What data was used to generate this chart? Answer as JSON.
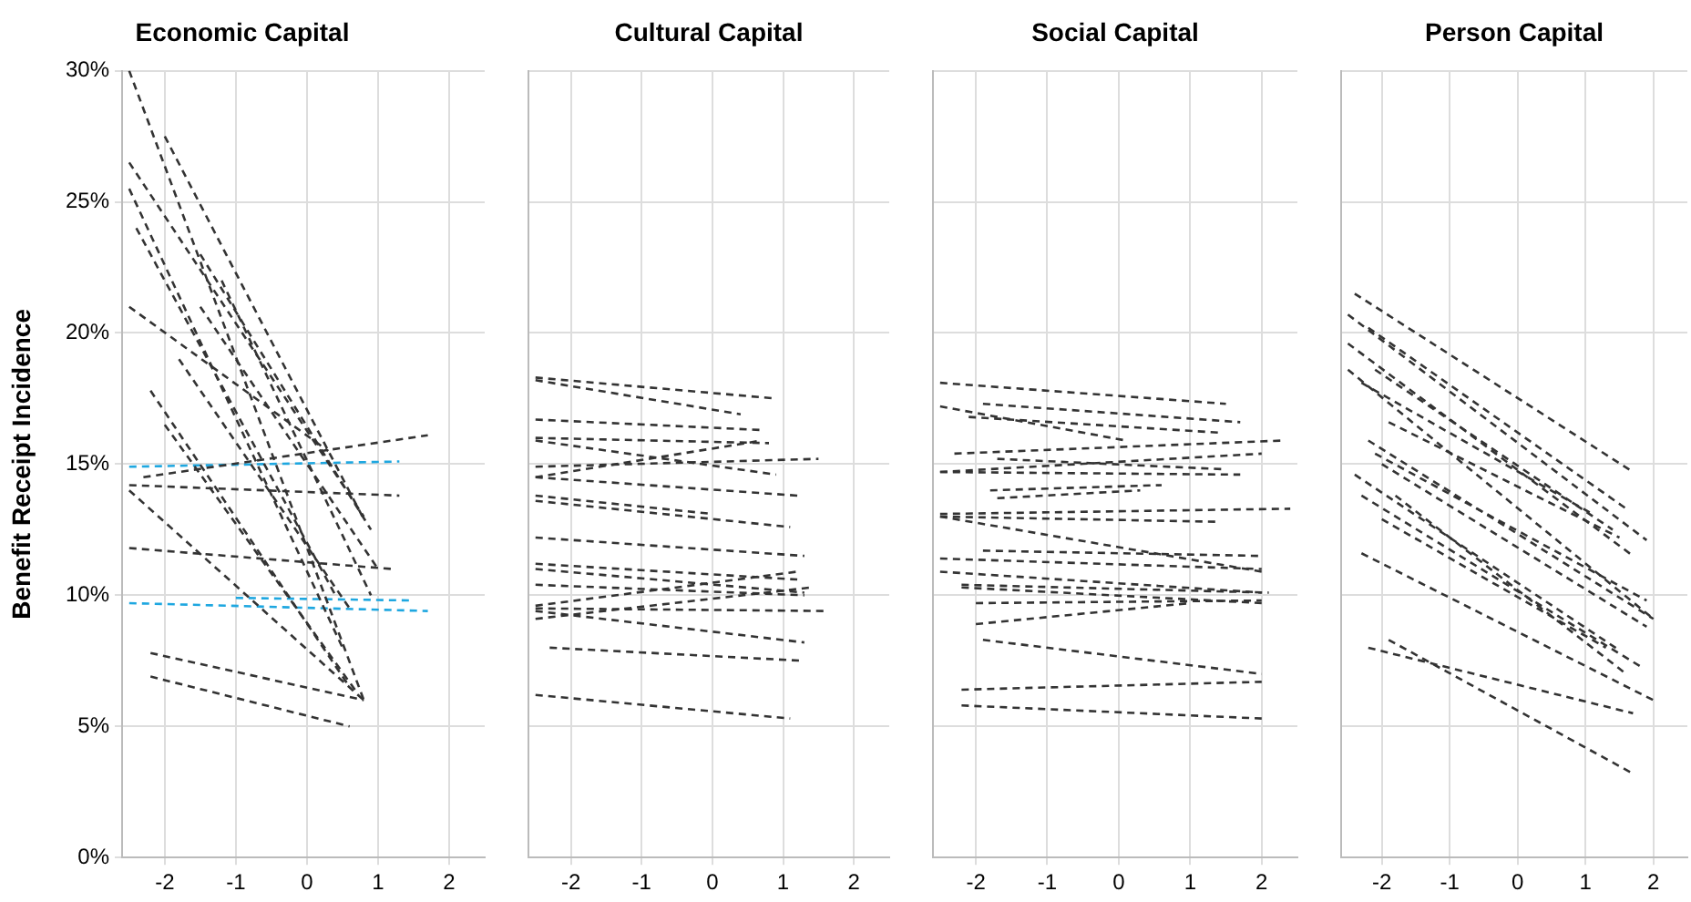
{
  "chart_data": [
    {
      "type": "line",
      "title": "Economic Capital",
      "ylabel": "Benefit Receipt Incidence",
      "xlim": [
        -2.6,
        2.5
      ],
      "ylim": [
        0,
        30
      ],
      "xticks": [
        -2,
        -1,
        0,
        1,
        2
      ],
      "yticks": [
        {
          "value": 0,
          "label": "0%"
        },
        {
          "value": 5,
          "label": "5%"
        },
        {
          "value": 10,
          "label": "10%"
        },
        {
          "value": 15,
          "label": "15%"
        },
        {
          "value": 20,
          "label": "20%"
        },
        {
          "value": 25,
          "label": "25%"
        },
        {
          "value": 30,
          "label": "30%"
        }
      ],
      "grid": true,
      "marker": "none",
      "line_style": "dashed",
      "series": [
        {
          "color": "#333333",
          "x": [
            -2.5,
            0.8
          ],
          "values": [
            30,
            6
          ]
        },
        {
          "color": "#333333",
          "x": [
            -2.5,
            0.8
          ],
          "values": [
            26.5,
            13
          ]
        },
        {
          "color": "#333333",
          "x": [
            -2.5,
            0.5
          ],
          "values": [
            25.5,
            8
          ]
        },
        {
          "color": "#333333",
          "x": [
            -2.4,
            0.4
          ],
          "values": [
            24,
            10
          ]
        },
        {
          "color": "#333333",
          "x": [
            -2.5,
            0.3
          ],
          "values": [
            21,
            15.5
          ]
        },
        {
          "color": "#333333",
          "x": [
            -2.2,
            0.6
          ],
          "values": [
            17.8,
            6.5
          ]
        },
        {
          "color": "#333333",
          "x": [
            -2.5,
            0.8
          ],
          "values": [
            14,
            6
          ]
        },
        {
          "color": "#333333",
          "x": [
            -2.5,
            1.2
          ],
          "values": [
            11.8,
            11
          ]
        },
        {
          "color": "#333333",
          "x": [
            -2.5,
            1.3
          ],
          "values": [
            14.2,
            13.8
          ]
        },
        {
          "color": "#333333",
          "x": [
            -2.3,
            1.7
          ],
          "values": [
            14.5,
            16.1
          ]
        },
        {
          "color": "#333333",
          "x": [
            -2.2,
            0.8
          ],
          "values": [
            7.8,
            6
          ]
        },
        {
          "color": "#333333",
          "x": [
            -2.2,
            0.6
          ],
          "values": [
            6.9,
            5
          ]
        },
        {
          "color": "#333333",
          "x": [
            -1.5,
            0.9
          ],
          "values": [
            23,
            12.5
          ]
        },
        {
          "color": "#333333",
          "x": [
            -2,
            0.8
          ],
          "values": [
            27.5,
            12.9
          ]
        },
        {
          "color": "#333333",
          "x": [
            -1.5,
            1
          ],
          "values": [
            21,
            11
          ]
        },
        {
          "color": "#333333",
          "x": [
            -1.8,
            0.6
          ],
          "values": [
            19,
            9.5
          ]
        },
        {
          "color": "#333333",
          "x": [
            -2,
            0.7
          ],
          "values": [
            16.5,
            6.3
          ]
        },
        {
          "color": "#333333",
          "x": [
            -1.2,
            0.9
          ],
          "values": [
            22,
            10
          ]
        },
        {
          "color": "#1ea7e0",
          "x": [
            -2.5,
            1.3
          ],
          "values": [
            14.9,
            15.1
          ]
        },
        {
          "color": "#1ea7e0",
          "x": [
            -2.5,
            1.7
          ],
          "values": [
            9.7,
            9.4
          ]
        },
        {
          "color": "#1ea7e0",
          "x": [
            -1,
            1.5
          ],
          "values": [
            9.9,
            9.8
          ]
        }
      ]
    },
    {
      "type": "line",
      "title": "Cultural Capital",
      "xlim": [
        -2.6,
        2.5
      ],
      "ylim": [
        0,
        30
      ],
      "xticks": [
        -2,
        -1,
        0,
        1,
        2
      ],
      "yticks": [
        0,
        5,
        10,
        15,
        20,
        25,
        30
      ],
      "tick_labels": "x",
      "grid": true,
      "marker": "none",
      "line_style": "dashed",
      "series": [
        {
          "color": "#333333",
          "x": [
            -2.5,
            0.9
          ],
          "values": [
            18.3,
            17.5
          ]
        },
        {
          "color": "#333333",
          "x": [
            -2.5,
            0.4
          ],
          "values": [
            18.2,
            16.9
          ]
        },
        {
          "color": "#333333",
          "x": [
            -2.5,
            0.7
          ],
          "values": [
            16.7,
            16.3
          ]
        },
        {
          "color": "#333333",
          "x": [
            -2.5,
            0.8
          ],
          "values": [
            16,
            15.8
          ]
        },
        {
          "color": "#333333",
          "x": [
            -2.5,
            0.9
          ],
          "values": [
            15.9,
            14.6
          ]
        },
        {
          "color": "#333333",
          "x": [
            -2.5,
            1.5
          ],
          "values": [
            14.9,
            15.2
          ]
        },
        {
          "color": "#333333",
          "x": [
            -2.5,
            0.7
          ],
          "values": [
            14.5,
            15.9
          ]
        },
        {
          "color": "#333333",
          "x": [
            -2.5,
            1.2
          ],
          "values": [
            14.5,
            13.8
          ]
        },
        {
          "color": "#333333",
          "x": [
            -2.5,
            0
          ],
          "values": [
            13.8,
            13.1
          ]
        },
        {
          "color": "#333333",
          "x": [
            -2.5,
            1.1
          ],
          "values": [
            13.6,
            12.6
          ]
        },
        {
          "color": "#333333",
          "x": [
            -2.5,
            1.3
          ],
          "values": [
            12.2,
            11.5
          ]
        },
        {
          "color": "#333333",
          "x": [
            -2.5,
            1.2
          ],
          "values": [
            11.2,
            10.6
          ]
        },
        {
          "color": "#333333",
          "x": [
            -2.5,
            1.3
          ],
          "values": [
            11,
            10.1
          ]
        },
        {
          "color": "#333333",
          "x": [
            -2.5,
            1.3
          ],
          "values": [
            10.4,
            10
          ]
        },
        {
          "color": "#333333",
          "x": [
            -2.5,
            1.2
          ],
          "values": [
            9.6,
            10.9
          ]
        },
        {
          "color": "#333333",
          "x": [
            -2.5,
            1.6
          ],
          "values": [
            9.5,
            9.4
          ]
        },
        {
          "color": "#333333",
          "x": [
            -2.5,
            1.4
          ],
          "values": [
            9.1,
            10.3
          ]
        },
        {
          "color": "#333333",
          "x": [
            -2.5,
            1.3
          ],
          "values": [
            9.4,
            8.2
          ]
        },
        {
          "color": "#333333",
          "x": [
            -2.3,
            1.3
          ],
          "values": [
            8,
            7.5
          ]
        },
        {
          "color": "#333333",
          "x": [
            -2.5,
            1.1
          ],
          "values": [
            6.2,
            5.3
          ]
        }
      ]
    },
    {
      "type": "line",
      "title": "Social Capital",
      "xlim": [
        -2.6,
        2.5
      ],
      "ylim": [
        0,
        30
      ],
      "xticks": [
        -2,
        -1,
        0,
        1,
        2
      ],
      "yticks": [
        0,
        5,
        10,
        15,
        20,
        25,
        30
      ],
      "tick_labels": "x",
      "grid": true,
      "marker": "none",
      "line_style": "dashed",
      "series": [
        {
          "color": "#333333",
          "x": [
            -2.5,
            1.5
          ],
          "values": [
            18.1,
            17.3
          ]
        },
        {
          "color": "#333333",
          "x": [
            -1.9,
            1.7
          ],
          "values": [
            17.3,
            16.6
          ]
        },
        {
          "color": "#333333",
          "x": [
            -2.5,
            0.1
          ],
          "values": [
            17.2,
            15.9
          ]
        },
        {
          "color": "#333333",
          "x": [
            -2.1,
            1.4
          ],
          "values": [
            16.8,
            16.2
          ]
        },
        {
          "color": "#333333",
          "x": [
            -2.3,
            2.3
          ],
          "values": [
            15.4,
            15.9
          ]
        },
        {
          "color": "#333333",
          "x": [
            -2.5,
            2
          ],
          "values": [
            14.7,
            15.4
          ]
        },
        {
          "color": "#333333",
          "x": [
            -2.5,
            1.7
          ],
          "values": [
            14.7,
            14.6
          ]
        },
        {
          "color": "#333333",
          "x": [
            -1.7,
            1.5
          ],
          "values": [
            15.2,
            14.8
          ]
        },
        {
          "color": "#333333",
          "x": [
            -1.8,
            0.6
          ],
          "values": [
            14,
            14.2
          ]
        },
        {
          "color": "#333333",
          "x": [
            -1.7,
            0.3
          ],
          "values": [
            13.7,
            14
          ]
        },
        {
          "color": "#333333",
          "x": [
            -2.5,
            2.4
          ],
          "values": [
            13.1,
            13.3
          ]
        },
        {
          "color": "#333333",
          "x": [
            -2.5,
            1.4
          ],
          "values": [
            13,
            12.8
          ]
        },
        {
          "color": "#333333",
          "x": [
            -2.5,
            2
          ],
          "values": [
            13,
            10.9
          ]
        },
        {
          "color": "#333333",
          "x": [
            -1.9,
            2
          ],
          "values": [
            11.7,
            11.5
          ]
        },
        {
          "color": "#333333",
          "x": [
            -2.5,
            2
          ],
          "values": [
            11.4,
            11
          ]
        },
        {
          "color": "#333333",
          "x": [
            -2.5,
            2
          ],
          "values": [
            10.9,
            10.1
          ]
        },
        {
          "color": "#333333",
          "x": [
            -2.2,
            2.1
          ],
          "values": [
            10.4,
            10.1
          ]
        },
        {
          "color": "#333333",
          "x": [
            -2.2,
            2
          ],
          "values": [
            10.3,
            9.7
          ]
        },
        {
          "color": "#333333",
          "x": [
            -2,
            2
          ],
          "values": [
            9.7,
            9.8
          ]
        },
        {
          "color": "#333333",
          "x": [
            -2,
            1
          ],
          "values": [
            8.9,
            9.7
          ]
        },
        {
          "color": "#333333",
          "x": [
            -1.9,
            2
          ],
          "values": [
            8.3,
            7
          ]
        },
        {
          "color": "#333333",
          "x": [
            -2.2,
            2
          ],
          "values": [
            6.4,
            6.7
          ]
        },
        {
          "color": "#333333",
          "x": [
            -2.2,
            2
          ],
          "values": [
            5.8,
            5.3
          ]
        }
      ]
    },
    {
      "type": "line",
      "title": "Person Capital",
      "xlim": [
        -2.6,
        2.5
      ],
      "ylim": [
        0,
        30
      ],
      "xticks": [
        -2,
        -1,
        0,
        1,
        2
      ],
      "yticks": [
        0,
        5,
        10,
        15,
        20,
        25,
        30
      ],
      "tick_labels": "x",
      "grid": true,
      "marker": "none",
      "line_style": "dashed",
      "series": [
        {
          "color": "#333333",
          "x": [
            -2.4,
            1.7
          ],
          "values": [
            21.5,
            14.7
          ]
        },
        {
          "color": "#333333",
          "x": [
            -2.5,
            1.9
          ],
          "values": [
            20.7,
            12.1
          ]
        },
        {
          "color": "#333333",
          "x": [
            -2.2,
            1.6
          ],
          "values": [
            20.2,
            13.3
          ]
        },
        {
          "color": "#333333",
          "x": [
            -2.5,
            1.7
          ],
          "values": [
            19.6,
            11.5
          ]
        },
        {
          "color": "#333333",
          "x": [
            -2.5,
            2
          ],
          "values": [
            18.6,
            9.1
          ]
        },
        {
          "color": "#333333",
          "x": [
            -2.1,
            1.4
          ],
          "values": [
            18.6,
            12.5
          ]
        },
        {
          "color": "#333333",
          "x": [
            -2.3,
            1.1
          ],
          "values": [
            18.1,
            13.1
          ]
        },
        {
          "color": "#333333",
          "x": [
            -1.9,
            1.5
          ],
          "values": [
            16.6,
            12.2
          ]
        },
        {
          "color": "#333333",
          "x": [
            -2.2,
            2
          ],
          "values": [
            15.9,
            9.1
          ]
        },
        {
          "color": "#333333",
          "x": [
            -2.1,
            1.9
          ],
          "values": [
            15.4,
            9.8
          ]
        },
        {
          "color": "#333333",
          "x": [
            -2,
            1.9
          ],
          "values": [
            15,
            8.8
          ]
        },
        {
          "color": "#333333",
          "x": [
            -2.4,
            1.5
          ],
          "values": [
            14.6,
            7.9
          ]
        },
        {
          "color": "#333333",
          "x": [
            -2.3,
            1.8
          ],
          "values": [
            13.8,
            7.3
          ]
        },
        {
          "color": "#333333",
          "x": [
            -1.8,
            1.6
          ],
          "values": [
            13.8,
            7
          ]
        },
        {
          "color": "#333333",
          "x": [
            -2,
            1.3
          ],
          "values": [
            12.9,
            8
          ]
        },
        {
          "color": "#333333",
          "x": [
            -2.3,
            2
          ],
          "values": [
            11.6,
            6
          ]
        },
        {
          "color": "#333333",
          "x": [
            -1.9,
            1.7
          ],
          "values": [
            8.3,
            3.2
          ]
        },
        {
          "color": "#333333",
          "x": [
            -2.2,
            1.7
          ],
          "values": [
            8,
            5.5
          ]
        }
      ]
    }
  ]
}
